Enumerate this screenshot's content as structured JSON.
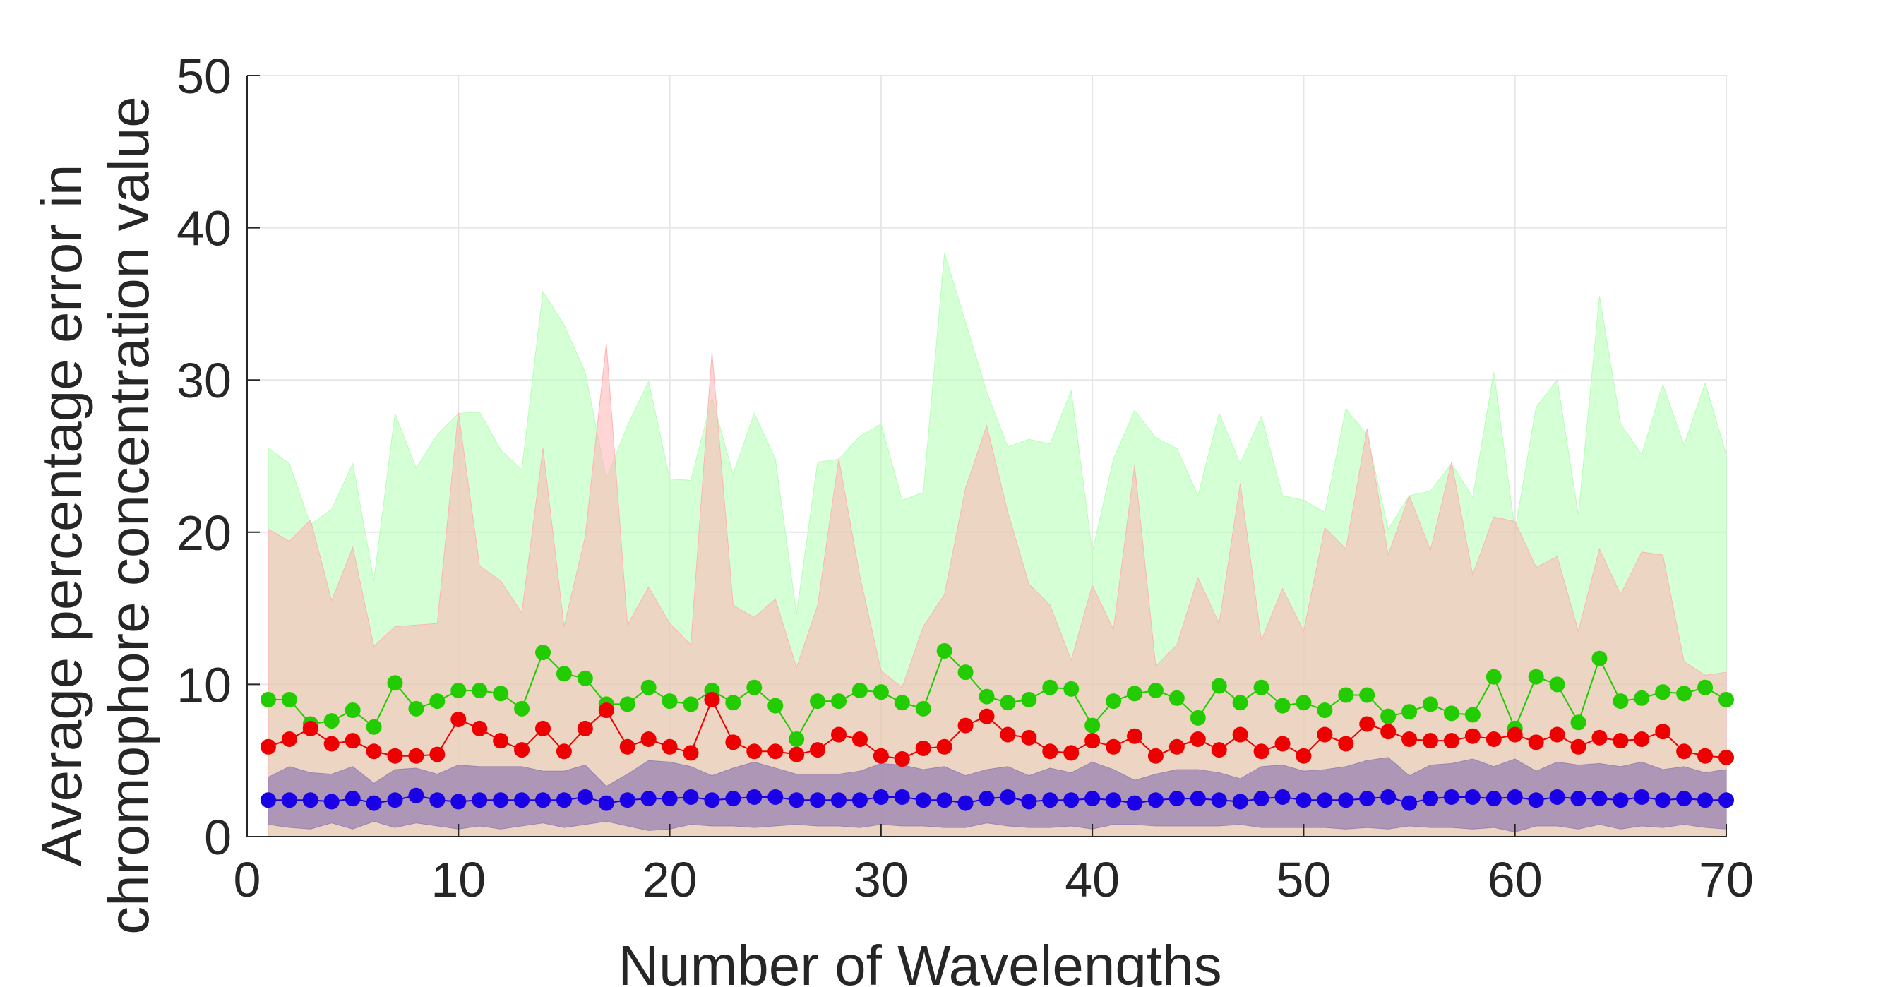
{
  "chart_data": {
    "type": "line",
    "title": "",
    "xlabel": "Number of Wavelengths",
    "ylabel_lines": [
      "Average percentage error in",
      "chromophore concentration value"
    ],
    "xlim": [
      0,
      70
    ],
    "ylim": [
      0,
      50
    ],
    "xticks": [
      0,
      10,
      20,
      30,
      40,
      50,
      60,
      70
    ],
    "yticks": [
      0,
      10,
      20,
      30,
      40,
      50
    ],
    "xtick_labels": [
      "0",
      "10",
      "20",
      "30",
      "40",
      "50",
      "60",
      "70"
    ],
    "ytick_labels": [
      "0",
      "10",
      "20",
      "30",
      "40",
      "50"
    ],
    "grid": true,
    "legend": false,
    "x": [
      1,
      2,
      3,
      4,
      5,
      6,
      7,
      8,
      9,
      10,
      11,
      12,
      13,
      14,
      15,
      16,
      17,
      18,
      19,
      20,
      21,
      22,
      23,
      24,
      25,
      26,
      27,
      28,
      29,
      30,
      31,
      32,
      33,
      34,
      35,
      36,
      37,
      38,
      39,
      40,
      41,
      42,
      43,
      44,
      45,
      46,
      47,
      48,
      49,
      50,
      51,
      52,
      53,
      54,
      55,
      56,
      57,
      58,
      59,
      60,
      61,
      62,
      63,
      64,
      65,
      66,
      67,
      68,
      69,
      70
    ],
    "series": [
      {
        "color": "#1ecc00",
        "band_color": "#b3ffb3",
        "marker_color": "#22cc00",
        "values": [
          9.0,
          9.0,
          7.4,
          7.6,
          8.3,
          7.2,
          10.1,
          8.4,
          8.9,
          9.6,
          9.6,
          9.4,
          8.4,
          12.1,
          10.7,
          10.4,
          8.7,
          8.7,
          9.8,
          8.9,
          8.7,
          9.6,
          8.8,
          9.8,
          8.6,
          6.4,
          8.9,
          8.9,
          9.6,
          9.5,
          8.8,
          8.4,
          12.2,
          10.8,
          9.2,
          8.8,
          9.0,
          9.8,
          9.7,
          7.3,
          8.9,
          9.4,
          9.6,
          9.1,
          7.8,
          9.9,
          8.8,
          9.8,
          8.6,
          8.8,
          8.3,
          9.3,
          9.3,
          7.9,
          8.2,
          8.7,
          8.1,
          8.0,
          10.5,
          7.1,
          10.5,
          10.0,
          7.5,
          11.7,
          8.9,
          9.1,
          9.5,
          9.4,
          9.8,
          9.0
        ],
        "band_upper": [
          25.5,
          24.5,
          20.5,
          21.5,
          24.5,
          16.8,
          27.8,
          24.2,
          26.4,
          27.8,
          27.9,
          25.4,
          24.1,
          35.8,
          33.6,
          30.5,
          23.5,
          27.0,
          29.9,
          23.5,
          23.4,
          28.8,
          23.8,
          27.8,
          24.8,
          14.6,
          24.6,
          24.8,
          26.3,
          27.1,
          22.1,
          22.6,
          38.3,
          33.8,
          29.2,
          25.6,
          26.1,
          25.8,
          29.3,
          18.7,
          24.8,
          28.0,
          26.2,
          25.5,
          22.4,
          27.8,
          24.5,
          27.6,
          22.4,
          22.1,
          21.3,
          28.1,
          26.4,
          20.2,
          22.4,
          22.7,
          24.5,
          22.3,
          30.5,
          20.1,
          28.2,
          30.0,
          21.1,
          35.5,
          27.1,
          25.1,
          29.7,
          25.7,
          29.8,
          25.1
        ],
        "band_lower": [
          0,
          0,
          0,
          0,
          0,
          0,
          0,
          0,
          0,
          0,
          0,
          0,
          0,
          0,
          0,
          0,
          0,
          0,
          0,
          0,
          0,
          0,
          0,
          0,
          0,
          0,
          0,
          0,
          0,
          0,
          0,
          0,
          0,
          0,
          0,
          0,
          0,
          0,
          0,
          0,
          0,
          0,
          0,
          0,
          0,
          0,
          0,
          0,
          0,
          0,
          0,
          0,
          0,
          0,
          0,
          0,
          0,
          0,
          0,
          0,
          0,
          0,
          0,
          0,
          0,
          0,
          0,
          0,
          0,
          0
        ]
      },
      {
        "color": "#ee0000",
        "band_color": "#ffb3b3",
        "marker_color": "#ee0000",
        "values": [
          5.9,
          6.4,
          7.1,
          6.1,
          6.3,
          5.6,
          5.3,
          5.3,
          5.4,
          7.7,
          7.1,
          6.3,
          5.7,
          7.1,
          5.6,
          7.1,
          8.3,
          5.9,
          6.4,
          5.9,
          5.5,
          9.0,
          6.2,
          5.6,
          5.6,
          5.4,
          5.7,
          6.7,
          6.4,
          5.3,
          5.1,
          5.8,
          5.9,
          7.3,
          7.9,
          6.7,
          6.5,
          5.6,
          5.5,
          6.3,
          5.9,
          6.6,
          5.3,
          5.9,
          6.4,
          5.7,
          6.7,
          5.6,
          6.1,
          5.3,
          6.7,
          6.1,
          7.4,
          6.9,
          6.4,
          6.3,
          6.3,
          6.6,
          6.4,
          6.7,
          6.2,
          6.7,
          5.9,
          6.5,
          6.3,
          6.4,
          6.9,
          5.6,
          5.3,
          5.2
        ],
        "band_upper": [
          20.2,
          19.4,
          20.8,
          15.5,
          19.0,
          12.5,
          13.8,
          13.9,
          14.0,
          27.9,
          17.8,
          16.8,
          14.7,
          25.5,
          13.8,
          19.7,
          32.4,
          13.9,
          16.4,
          14.0,
          12.6,
          31.8,
          15.2,
          14.4,
          15.6,
          11.1,
          15.2,
          24.8,
          17.1,
          10.9,
          9.8,
          13.8,
          15.9,
          22.9,
          27.0,
          21.3,
          16.6,
          15.2,
          11.6,
          16.5,
          13.6,
          24.4,
          11.2,
          12.6,
          17.0,
          14.0,
          23.2,
          12.9,
          16.3,
          13.5,
          20.3,
          18.9,
          26.8,
          18.5,
          22.4,
          18.8,
          24.6,
          17.2,
          21.0,
          20.7,
          17.7,
          18.4,
          13.5,
          18.9,
          15.9,
          18.7,
          18.5,
          11.5,
          10.6,
          10.8
        ],
        "band_lower": [
          0,
          0,
          0,
          0,
          0,
          0,
          0,
          0,
          0,
          0,
          0,
          0,
          0,
          0,
          0,
          0,
          0,
          0,
          0,
          0,
          0,
          0,
          0,
          0,
          0,
          0,
          0,
          0,
          0,
          0,
          0,
          0,
          0,
          0,
          0,
          0,
          0,
          0,
          0,
          0,
          0,
          0,
          0,
          0,
          0,
          0,
          0,
          0,
          0,
          0,
          0,
          0,
          0,
          0,
          0,
          0,
          0,
          0,
          0,
          0,
          0,
          0,
          0,
          0,
          0,
          0,
          0,
          0,
          0,
          0
        ]
      },
      {
        "color": "#1a00e6",
        "band_color": "#9a82b2",
        "marker_color": "#1a00e6",
        "values": [
          2.4,
          2.4,
          2.4,
          2.3,
          2.5,
          2.2,
          2.4,
          2.7,
          2.4,
          2.3,
          2.4,
          2.4,
          2.4,
          2.4,
          2.4,
          2.6,
          2.2,
          2.4,
          2.5,
          2.5,
          2.6,
          2.4,
          2.5,
          2.6,
          2.6,
          2.4,
          2.4,
          2.4,
          2.4,
          2.6,
          2.6,
          2.4,
          2.4,
          2.2,
          2.5,
          2.6,
          2.3,
          2.4,
          2.4,
          2.5,
          2.4,
          2.2,
          2.4,
          2.5,
          2.5,
          2.4,
          2.3,
          2.5,
          2.6,
          2.4,
          2.4,
          2.4,
          2.5,
          2.6,
          2.2,
          2.5,
          2.6,
          2.6,
          2.5,
          2.6,
          2.4,
          2.6,
          2.5,
          2.5,
          2.4,
          2.6,
          2.4,
          2.5,
          2.4,
          2.4
        ],
        "band_upper": [
          3.9,
          4.6,
          4.2,
          4.1,
          4.6,
          3.5,
          4.4,
          4.5,
          4.1,
          4.7,
          4.6,
          4.6,
          4.6,
          4.3,
          4.3,
          4.7,
          3.3,
          4.1,
          5.0,
          4.9,
          4.6,
          4.0,
          4.5,
          4.9,
          4.5,
          4.1,
          4.1,
          4.1,
          4.3,
          4.8,
          4.7,
          4.4,
          4.6,
          4.0,
          4.4,
          4.6,
          4.0,
          4.5,
          4.2,
          4.9,
          4.4,
          3.7,
          4.1,
          4.4,
          4.4,
          4.2,
          3.8,
          4.6,
          4.7,
          4.3,
          4.4,
          4.6,
          5.0,
          5.2,
          4.0,
          4.7,
          4.8,
          5.1,
          4.6,
          5.1,
          4.3,
          4.9,
          4.7,
          4.8,
          4.6,
          4.9,
          4.4,
          4.6,
          4.2,
          4.4
        ],
        "band_lower": [
          0.8,
          0.6,
          0.5,
          0.9,
          0.5,
          1.0,
          0.6,
          0.9,
          0.7,
          0.5,
          0.7,
          0.5,
          0.7,
          0.9,
          0.6,
          0.8,
          1.0,
          0.7,
          0.4,
          0.5,
          0.8,
          0.7,
          0.7,
          0.6,
          0.7,
          0.8,
          0.7,
          0.7,
          0.6,
          0.8,
          0.7,
          0.7,
          0.6,
          0.6,
          0.9,
          0.7,
          0.6,
          0.6,
          0.7,
          0.5,
          0.8,
          0.8,
          0.7,
          0.7,
          0.7,
          0.7,
          0.8,
          0.6,
          0.6,
          0.6,
          0.6,
          0.5,
          0.6,
          0.5,
          0.7,
          0.6,
          0.6,
          0.5,
          0.6,
          0.3,
          0.7,
          0.7,
          0.5,
          0.8,
          0.5,
          0.7,
          0.6,
          0.8,
          0.6,
          0.5
        ]
      }
    ]
  }
}
